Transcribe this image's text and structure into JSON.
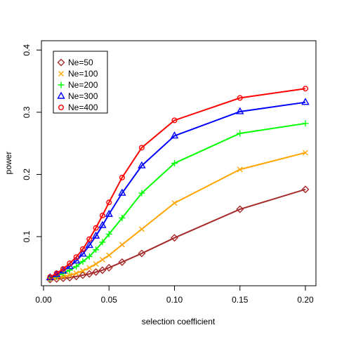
{
  "chart_data": {
    "type": "line",
    "title": "",
    "xlabel": "selection coefficient",
    "ylabel": "power",
    "xlim": [
      0.0,
      0.2
    ],
    "ylim": [
      0.021,
      0.415
    ],
    "xticks": [
      0.0,
      0.05,
      0.1,
      0.15,
      0.2
    ],
    "xtick_labels": [
      "0.00",
      "0.05",
      "0.10",
      "0.15",
      "0.20"
    ],
    "yticks": [
      0.1,
      0.2,
      0.3,
      0.4
    ],
    "ytick_labels": [
      "0.1",
      "0.2",
      "0.3",
      "0.4"
    ],
    "grid": false,
    "legend_position": "top-left",
    "x": [
      0.005,
      0.01,
      0.015,
      0.02,
      0.025,
      0.03,
      0.035,
      0.04,
      0.045,
      0.05,
      0.06,
      0.075,
      0.1,
      0.15,
      0.2
    ],
    "series": [
      {
        "name": "Ne=50",
        "color": "#a52a2a",
        "marker": "diamond",
        "values": [
          0.031,
          0.032,
          0.033,
          0.034,
          0.036,
          0.038,
          0.04,
          0.043,
          0.046,
          0.05,
          0.059,
          0.073,
          0.098,
          0.144,
          0.176
        ]
      },
      {
        "name": "Ne=100",
        "color": "#ffa500",
        "marker": "x",
        "values": [
          0.032,
          0.034,
          0.036,
          0.038,
          0.041,
          0.045,
          0.05,
          0.056,
          0.063,
          0.07,
          0.087,
          0.112,
          0.154,
          0.208,
          0.235
        ]
      },
      {
        "name": "Ne=200",
        "color": "#00ff00",
        "marker": "plus",
        "values": [
          0.033,
          0.037,
          0.041,
          0.046,
          0.052,
          0.06,
          0.068,
          0.079,
          0.091,
          0.104,
          0.13,
          0.17,
          0.218,
          0.266,
          0.282
        ]
      },
      {
        "name": "Ne=300",
        "color": "#0000ff",
        "marker": "triangle",
        "values": [
          0.034,
          0.039,
          0.045,
          0.052,
          0.061,
          0.072,
          0.086,
          0.101,
          0.118,
          0.136,
          0.17,
          0.214,
          0.262,
          0.301,
          0.316
        ]
      },
      {
        "name": "Ne=400",
        "color": "#ff0000",
        "marker": "circle",
        "values": [
          0.035,
          0.041,
          0.048,
          0.057,
          0.067,
          0.08,
          0.096,
          0.114,
          0.134,
          0.155,
          0.195,
          0.243,
          0.287,
          0.323,
          0.338
        ]
      }
    ]
  }
}
